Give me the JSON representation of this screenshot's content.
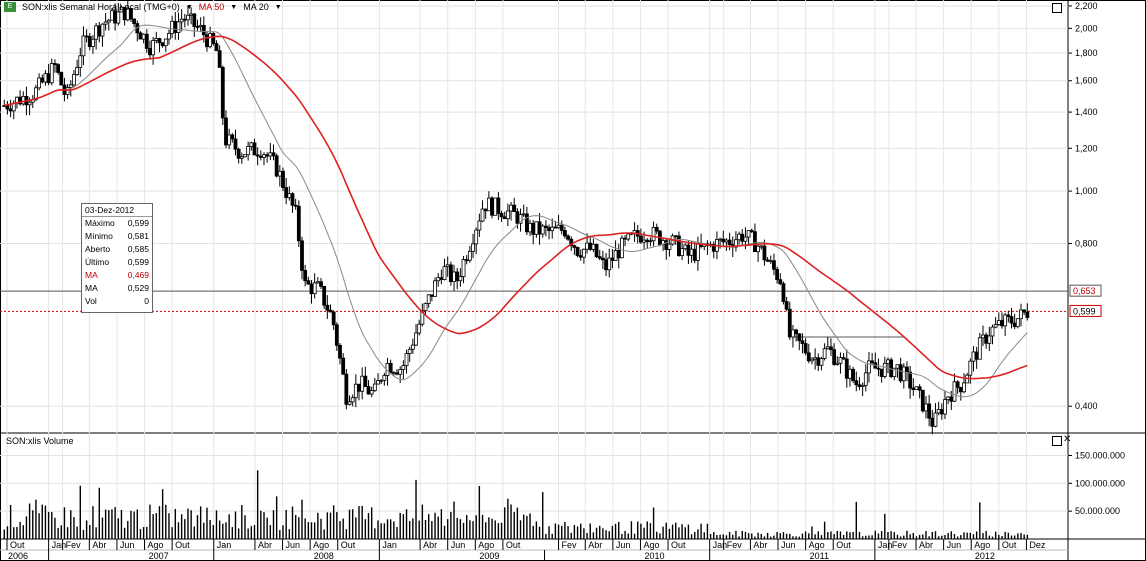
{
  "header": {
    "symbol_label": "SON:xlis Semanal Hora Local (TMG+0)",
    "ma1_label": "MA 50",
    "ma2_label": "MA 20"
  },
  "volume_header": "SON:xlis Volume",
  "infobox": {
    "date": "03-Dez-2012",
    "rows": [
      {
        "label": "Máximo",
        "value": "0,599"
      },
      {
        "label": "Mínimo",
        "value": "0,581"
      },
      {
        "label": "Aberto",
        "value": "0,585"
      },
      {
        "label": "Último",
        "value": "0,599"
      },
      {
        "label": "MA",
        "value": "0,469"
      },
      {
        "label": "MA",
        "value": "0,529"
      },
      {
        "label": "Vol",
        "value": "0"
      }
    ]
  },
  "colors": {
    "ma50": "#dd2222",
    "ma20": "#888888",
    "candle": "#000000",
    "last_price_line": "#cc0000",
    "ref_line": "#555555"
  },
  "chart_data": [
    {
      "type": "candlestick",
      "title": "SON:xlis Semanal Hora Local (TMG+0)",
      "x_axis_months": [
        "Out",
        "Jan",
        "Fev",
        "Abr",
        "Jun",
        "Ago",
        "Out",
        "Jan",
        "Abr",
        "Jun",
        "Ago",
        "Out",
        "Jan",
        "Abr",
        "Jun",
        "Ago",
        "Out",
        "Fev",
        "Abr",
        "Jun",
        "Ago",
        "Out",
        "Jan",
        "Fev",
        "Abr",
        "Jun",
        "Ago",
        "Out",
        "Jan",
        "Fev",
        "Abr",
        "Jun",
        "Ago",
        "Out",
        "Dez"
      ],
      "x_axis_years": [
        "2006",
        "2007",
        "2008",
        "2009",
        "2010",
        "2011",
        "2012"
      ],
      "y_ticks": [
        "2,200",
        "2,000",
        "1,800",
        "1,600",
        "1,400",
        "1,200",
        "1,000",
        "0,800",
        "0,400"
      ],
      "y_range": [
        0.33,
        2.22
      ],
      "y_scale": "log",
      "price_markers": [
        {
          "label": "0,653",
          "value": 0.653,
          "style": "solid"
        },
        {
          "label": "0,599",
          "value": 0.599,
          "style": "dotted"
        }
      ],
      "series": [
        {
          "name": "MA 50",
          "kind": "line"
        },
        {
          "name": "MA 20",
          "kind": "line"
        }
      ],
      "anchors": [
        [
          "2006-09-25",
          1.44
        ],
        [
          "2006-12-01",
          1.52
        ],
        [
          "2007-01-15",
          1.7
        ],
        [
          "2007-02-10",
          1.48
        ],
        [
          "2007-03-15",
          1.85
        ],
        [
          "2007-05-01",
          2.05
        ],
        [
          "2007-06-20",
          2.15
        ],
        [
          "2007-08-15",
          1.85
        ],
        [
          "2007-09-20",
          1.95
        ],
        [
          "2007-10-25",
          2.1
        ],
        [
          "2007-12-05",
          1.98
        ],
        [
          "2008-01-10",
          1.8
        ],
        [
          "2008-01-25",
          1.25
        ],
        [
          "2008-03-01",
          1.18
        ],
        [
          "2008-04-15",
          1.2
        ],
        [
          "2008-05-20",
          1.1
        ],
        [
          "2008-07-01",
          0.9
        ],
        [
          "2008-07-20",
          0.67
        ],
        [
          "2008-08-20",
          0.66
        ],
        [
          "2008-09-20",
          0.58
        ],
        [
          "2008-10-20",
          0.42
        ],
        [
          "2008-11-20",
          0.44
        ],
        [
          "2008-12-20",
          0.42
        ],
        [
          "2009-01-15",
          0.48
        ],
        [
          "2009-02-20",
          0.47
        ],
        [
          "2009-03-20",
          0.54
        ],
        [
          "2009-04-20",
          0.63
        ],
        [
          "2009-05-20",
          0.72
        ],
        [
          "2009-06-20",
          0.68
        ],
        [
          "2009-07-20",
          0.8
        ],
        [
          "2009-08-20",
          0.95
        ],
        [
          "2009-09-20",
          0.93
        ],
        [
          "2009-11-01",
          0.9
        ],
        [
          "2009-12-01",
          0.85
        ],
        [
          "2010-01-15",
          0.84
        ],
        [
          "2010-02-15",
          0.85
        ],
        [
          "2010-03-15",
          0.78
        ],
        [
          "2010-04-15",
          0.78
        ],
        [
          "2010-05-15",
          0.72
        ],
        [
          "2010-06-15",
          0.78
        ],
        [
          "2010-07-15",
          0.82
        ],
        [
          "2010-08-15",
          0.84
        ],
        [
          "2010-09-15",
          0.82
        ],
        [
          "2010-10-15",
          0.8
        ],
        [
          "2010-11-15",
          0.76
        ],
        [
          "2010-12-15",
          0.78
        ],
        [
          "2011-01-15",
          0.8
        ],
        [
          "2011-02-15",
          0.81
        ],
        [
          "2011-03-15",
          0.83
        ],
        [
          "2011-04-15",
          0.8
        ],
        [
          "2011-05-10",
          0.74
        ],
        [
          "2011-06-10",
          0.68
        ],
        [
          "2011-06-25",
          0.54
        ],
        [
          "2011-07-20",
          0.52
        ],
        [
          "2011-08-20",
          0.49
        ],
        [
          "2011-09-20",
          0.51
        ],
        [
          "2011-10-20",
          0.48
        ],
        [
          "2011-11-20",
          0.44
        ],
        [
          "2011-12-20",
          0.47
        ],
        [
          "2012-01-20",
          0.47
        ],
        [
          "2012-02-20",
          0.47
        ],
        [
          "2012-03-20",
          0.44
        ],
        [
          "2012-04-20",
          0.4
        ],
        [
          "2012-05-10",
          0.37
        ],
        [
          "2012-06-10",
          0.42
        ],
        [
          "2012-07-10",
          0.44
        ],
        [
          "2012-08-10",
          0.5
        ],
        [
          "2012-09-10",
          0.55
        ],
        [
          "2012-10-10",
          0.57
        ],
        [
          "2012-11-10",
          0.58
        ],
        [
          "2012-12-03",
          0.599
        ]
      ]
    },
    {
      "type": "bar",
      "title": "SON:xlis Volume",
      "y_ticks": [
        "150.000.000",
        "100.000.000",
        "50.000.000"
      ],
      "y_range": [
        0,
        185000000
      ]
    }
  ]
}
